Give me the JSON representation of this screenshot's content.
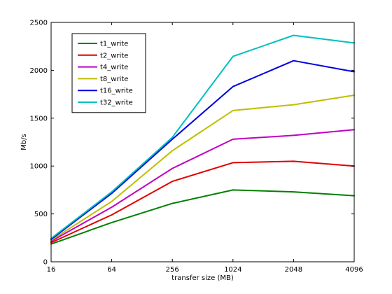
{
  "chart_data": {
    "type": "line",
    "title": "",
    "xlabel": "transfer size (MB)",
    "ylabel": "Mb/s",
    "categories": [
      "16",
      "64",
      "256",
      "1024",
      "2048",
      "4096"
    ],
    "ylim": [
      0,
      2500
    ],
    "yticks": [
      0,
      500,
      1000,
      1500,
      2000,
      2500
    ],
    "grid": false,
    "legend_position": "top-left",
    "series": [
      {
        "name": "t1_write",
        "color": "#008000",
        "values": [
          185,
          410,
          610,
          750,
          730,
          690
        ]
      },
      {
        "name": "t2_write",
        "color": "#e00000",
        "values": [
          200,
          490,
          840,
          1035,
          1050,
          1000
        ]
      },
      {
        "name": "t4_write",
        "color": "#c000c0",
        "values": [
          215,
          570,
          975,
          1280,
          1320,
          1380
        ]
      },
      {
        "name": "t8_write",
        "color": "#bfbf00",
        "values": [
          225,
          630,
          1160,
          1580,
          1640,
          1740
        ]
      },
      {
        "name": "t16_write",
        "color": "#0000e0",
        "values": [
          235,
          715,
          1280,
          1830,
          2100,
          1985
        ]
      },
      {
        "name": "t32_write",
        "color": "#00bfbf",
        "values": [
          245,
          730,
          1300,
          2145,
          2365,
          2285
        ]
      }
    ]
  }
}
